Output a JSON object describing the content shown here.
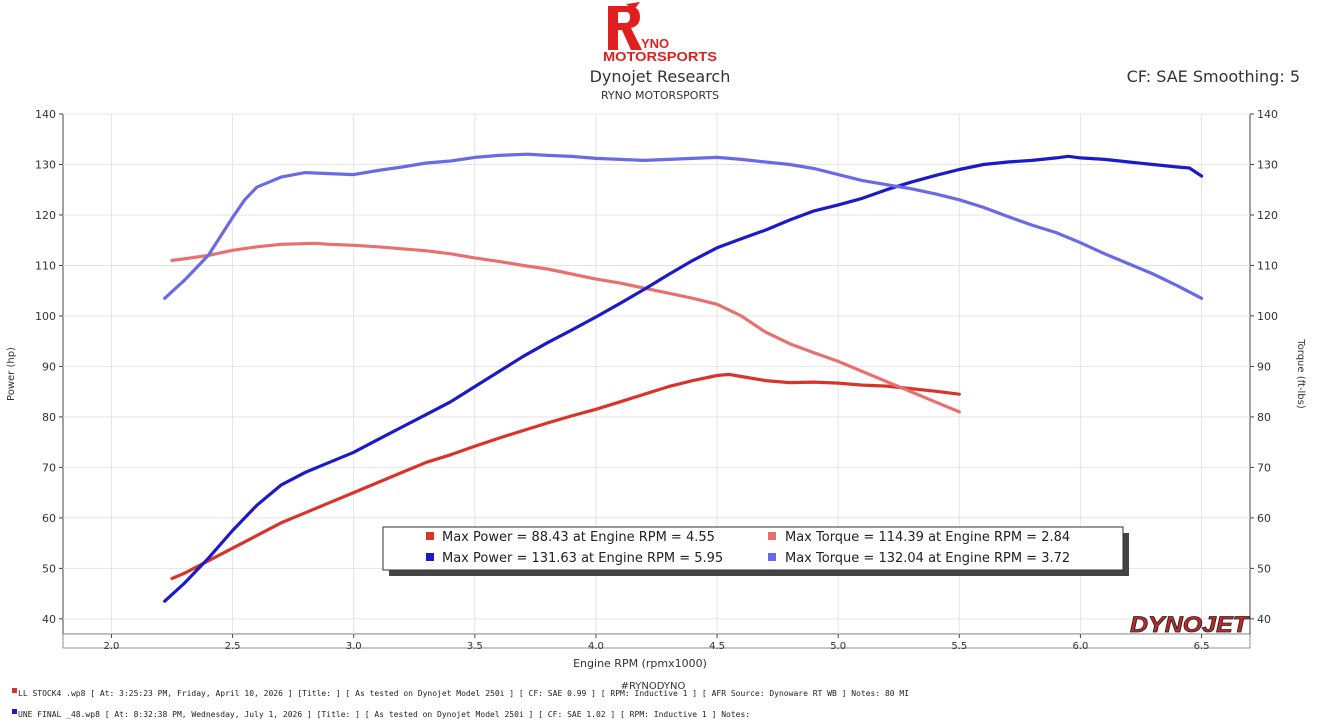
{
  "logo": {
    "letter": "R",
    "line1": "YNO",
    "line2": "MOTORSPORTS"
  },
  "header": {
    "title": "Dynojet Research",
    "subtitle": "RYNO MOTORSPORTS",
    "correction": "CF: SAE Smoothing: 5"
  },
  "brand_watermark": "DYNOJET",
  "hashtag": "#RYNODYNO",
  "colors": {
    "run1_power": "#d8342a",
    "run1_torque": "#e87070",
    "run2_power": "#1a1ac8",
    "run2_torque": "#6a6ae8"
  },
  "chart_data": {
    "type": "line",
    "xlabel": "Engine RPM (rpmx1000)",
    "ylabel_left": "Power (hp)",
    "ylabel_right": "Torque (ft-lbs)",
    "x_ticks": [
      "2.0",
      "2.5",
      "3.0",
      "3.5",
      "4.0",
      "4.5",
      "5.0",
      "5.5",
      "6.0",
      "6.5"
    ],
    "y_ticks": [
      "40",
      "50",
      "60",
      "70",
      "80",
      "90",
      "100",
      "110",
      "120",
      "130",
      "140"
    ],
    "xlim": [
      1.8,
      6.7
    ],
    "ylim": [
      37,
      140
    ],
    "grid": true,
    "series": [
      {
        "name": "Max Power = 88.43 at Engine RPM = 4.55",
        "axis": "left",
        "color": "#d8342a",
        "x": [
          2.25,
          2.3,
          2.4,
          2.5,
          2.6,
          2.7,
          2.8,
          2.9,
          3.0,
          3.1,
          3.2,
          3.3,
          3.4,
          3.5,
          3.6,
          3.7,
          3.8,
          3.9,
          4.0,
          4.1,
          4.2,
          4.3,
          4.4,
          4.5,
          4.55,
          4.6,
          4.7,
          4.8,
          4.9,
          5.0,
          5.1,
          5.2,
          5.3,
          5.4,
          5.5
        ],
        "y": [
          48,
          49,
          51.5,
          54,
          56.5,
          59,
          61,
          63,
          65,
          67,
          69,
          71,
          72.5,
          74.2,
          75.8,
          77.3,
          78.8,
          80.2,
          81.5,
          83,
          84.5,
          86,
          87.2,
          88.2,
          88.43,
          88,
          87.2,
          86.8,
          86.9,
          86.7,
          86.3,
          86.1,
          85.6,
          85.1,
          84.5
        ]
      },
      {
        "name": "Max Torque = 114.39 at Engine RPM = 2.84",
        "axis": "right",
        "color": "#e87070",
        "x": [
          2.25,
          2.3,
          2.4,
          2.5,
          2.6,
          2.7,
          2.84,
          2.9,
          3.0,
          3.1,
          3.2,
          3.3,
          3.4,
          3.5,
          3.6,
          3.7,
          3.8,
          3.9,
          4.0,
          4.1,
          4.2,
          4.3,
          4.4,
          4.5,
          4.6,
          4.7,
          4.8,
          4.9,
          5.0,
          5.1,
          5.2,
          5.3,
          5.4,
          5.5
        ],
        "y": [
          111,
          111.3,
          112,
          113,
          113.7,
          114.2,
          114.39,
          114.2,
          114,
          113.7,
          113.3,
          112.9,
          112.3,
          111.5,
          110.8,
          110,
          109.3,
          108.3,
          107.3,
          106.5,
          105.5,
          104.5,
          103.5,
          102.3,
          100,
          96.8,
          94.5,
          92.7,
          91,
          89,
          87,
          85,
          83,
          81
        ]
      },
      {
        "name": "Max Power = 131.63 at Engine RPM = 5.95",
        "axis": "left",
        "color": "#1a1ac8",
        "x": [
          2.22,
          2.3,
          2.4,
          2.5,
          2.6,
          2.7,
          2.8,
          2.9,
          3.0,
          3.1,
          3.2,
          3.3,
          3.4,
          3.5,
          3.6,
          3.7,
          3.8,
          3.9,
          4.0,
          4.1,
          4.2,
          4.3,
          4.4,
          4.5,
          4.6,
          4.7,
          4.8,
          4.9,
          5.0,
          5.1,
          5.2,
          5.3,
          5.4,
          5.5,
          5.6,
          5.7,
          5.8,
          5.9,
          5.95,
          6.0,
          6.1,
          6.2,
          6.3,
          6.4,
          6.45,
          6.5
        ],
        "y": [
          43.5,
          47,
          52,
          57.5,
          62.5,
          66.5,
          69,
          71,
          73,
          75.5,
          78,
          80.5,
          83,
          86,
          89,
          92,
          94.7,
          97.2,
          99.8,
          102.5,
          105.3,
          108.2,
          111,
          113.5,
          115.3,
          117,
          119,
          120.8,
          122,
          123.3,
          125,
          126.5,
          127.8,
          129,
          130,
          130.5,
          130.8,
          131.3,
          131.63,
          131.3,
          131,
          130.5,
          130,
          129.5,
          129.3,
          127.7
        ]
      },
      {
        "name": "Max Torque = 132.04 at Engine RPM = 3.72",
        "axis": "right",
        "color": "#6a6ae8",
        "x": [
          2.22,
          2.3,
          2.4,
          2.5,
          2.55,
          2.6,
          2.7,
          2.8,
          2.9,
          3.0,
          3.1,
          3.2,
          3.3,
          3.4,
          3.5,
          3.6,
          3.72,
          3.8,
          3.9,
          4.0,
          4.1,
          4.2,
          4.3,
          4.4,
          4.5,
          4.6,
          4.7,
          4.8,
          4.9,
          5.0,
          5.1,
          5.2,
          5.3,
          5.4,
          5.5,
          5.6,
          5.7,
          5.8,
          5.9,
          6.0,
          6.1,
          6.2,
          6.3,
          6.4,
          6.5
        ],
        "y": [
          103.5,
          107,
          112,
          119.5,
          123,
          125.5,
          127.5,
          128.4,
          128.2,
          128,
          128.8,
          129.5,
          130.3,
          130.7,
          131.4,
          131.8,
          132.04,
          131.8,
          131.6,
          131.2,
          131,
          130.8,
          131,
          131.2,
          131.4,
          131,
          130.5,
          130,
          129.2,
          128,
          126.8,
          126,
          125.2,
          124.2,
          123,
          121.5,
          119.7,
          118,
          116.5,
          114.5,
          112.3,
          110.3,
          108.3,
          106,
          103.5
        ]
      }
    ]
  },
  "legend": [
    {
      "text": "Max Power = 88.43 at Engine RPM = 4.55",
      "color": "#d8342a"
    },
    {
      "text": "Max Torque = 114.39 at Engine RPM = 2.84",
      "color": "#e87070"
    },
    {
      "text": "Max Power = 131.63 at Engine RPM = 5.95",
      "color": "#1a1ac8"
    },
    {
      "text": "Max Torque = 132.04 at Engine RPM = 3.72",
      "color": "#6a6ae8"
    }
  ],
  "runs": [
    {
      "text": "LL STOCK4 .wp8 [ At: 3:25:23 PM, Friday, April 10, 2026 ] [Title: ]  [ As tested on Dynojet Model 250i ] [ CF: SAE 0.99 ] [ RPM: Inductive 1 ] [ AFR Source: Dynoware RT WB ] Notes: 80 MI",
      "color": "#d8342a"
    },
    {
      "text": "UNE FINAL  _48.wp8 [ At: 8:32:38 PM, Wednesday, July 1, 2026 ] [Title: ]  [ As tested on Dynojet Model 250i ] [ CF: SAE 1.02 ] [ RPM: Inductive 1 ] Notes:",
      "color": "#1a1ac8"
    }
  ]
}
